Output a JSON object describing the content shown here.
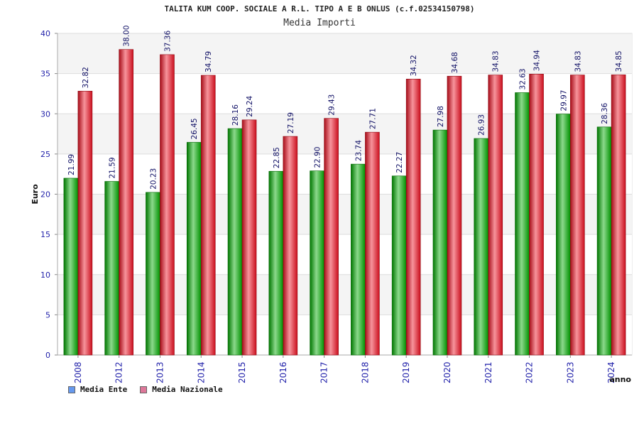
{
  "chart_data": {
    "type": "bar",
    "title": "TALITA KUM COOP. SOCIALE A R.L. TIPO A E B ONLUS (c.f.02534150798)",
    "subtitle": "Media Importi",
    "xlabel": "anno",
    "ylabel": "Euro",
    "ylim": [
      0,
      40
    ],
    "yticks": [
      0,
      5,
      10,
      15,
      20,
      25,
      30,
      35,
      40
    ],
    "grid": true,
    "legend_position": "bottom-left",
    "categories": [
      "2008",
      "2012",
      "2013",
      "2014",
      "2015",
      "2016",
      "2017",
      "2018",
      "2019",
      "2020",
      "2021",
      "2022",
      "2023",
      "2024"
    ],
    "series": [
      {
        "name": "Media Ente",
        "bar_color": "#00aa00",
        "legend_color": "#6699ee",
        "values": [
          21.99,
          21.59,
          20.23,
          26.45,
          28.16,
          22.85,
          22.9,
          23.74,
          22.27,
          27.98,
          26.93,
          32.63,
          29.97,
          28.36
        ],
        "labels": [
          "21.99",
          "21.59",
          "20.23",
          "26.45",
          "28.16",
          "22.85",
          "22.90",
          "23.74",
          "22.27",
          "27.98",
          "26.93",
          "32.63",
          "29.97",
          "28.36"
        ]
      },
      {
        "name": "Media Nazionale",
        "bar_color": "#ee1122",
        "legend_color": "#dd7799",
        "values": [
          32.82,
          38.0,
          37.36,
          34.79,
          29.24,
          27.19,
          29.43,
          27.71,
          34.32,
          34.68,
          34.83,
          34.94,
          34.83,
          34.85
        ],
        "labels": [
          "32.82",
          "38.00",
          "37.36",
          "34.79",
          "29.24",
          "27.19",
          "29.43",
          "27.71",
          "34.32",
          "34.68",
          "34.83",
          "34.94",
          "34.83",
          "34.85"
        ]
      }
    ]
  }
}
